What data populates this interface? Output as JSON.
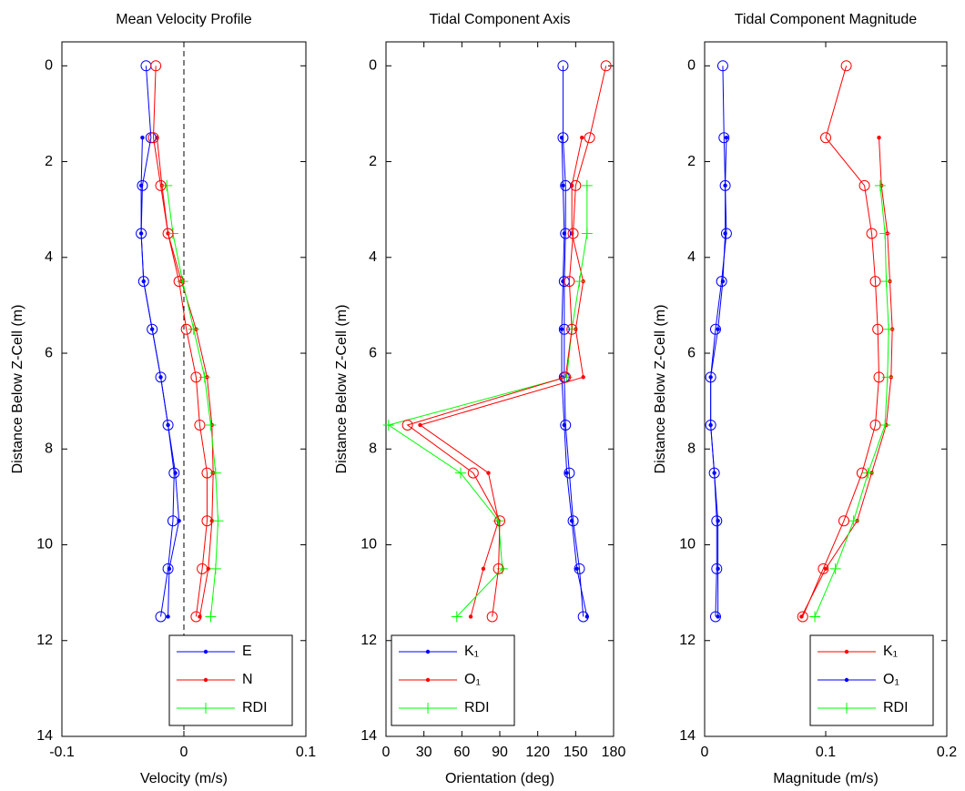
{
  "chart_data": [
    {
      "type": "line",
      "title": "Mean Velocity Profile",
      "xlabel": "Velocity (m/s)",
      "ylabel": "Distance Below Z-Cell (m)",
      "y": [
        0,
        1.5,
        2.5,
        3.5,
        4.5,
        5.5,
        6.5,
        7.5,
        8.5,
        9.5,
        10.5,
        11.5
      ],
      "xlim": [
        -0.1,
        0.1
      ],
      "xticks": [
        -0.1,
        0,
        0.1
      ],
      "ylim": [
        -0.5,
        14
      ],
      "yticks": [
        0,
        2,
        4,
        6,
        8,
        10,
        12,
        14
      ],
      "y_reversed": true,
      "legend": "southeast",
      "reference_line": {
        "x": 0,
        "color": "#000000",
        "style": "dashed"
      },
      "series": [
        {
          "name": "E",
          "color": "#0000ff",
          "marker": ".",
          "values": [
            null,
            -0.034,
            -0.035,
            -0.035,
            -0.033,
            -0.026,
            -0.019,
            -0.013,
            -0.007,
            -0.004,
            -0.012,
            -0.013
          ]
        },
        {
          "name": "N",
          "color": "#ff0000",
          "marker": ".",
          "values": [
            null,
            -0.022,
            -0.018,
            -0.013,
            -0.002,
            0.01,
            0.019,
            0.023,
            0.024,
            0.023,
            0.02,
            0.013
          ]
        },
        {
          "name": "RDI",
          "color": "#00ff00",
          "marker": "+",
          "values": [
            null,
            null,
            -0.014,
            -0.009,
            -0.001,
            0.008,
            0.017,
            0.022,
            0.026,
            0.028,
            0.026,
            0.022
          ]
        },
        {
          "color": "#0000ff",
          "marker": "o",
          "values": [
            -0.031,
            -0.027,
            -0.034,
            -0.035,
            -0.033,
            -0.026,
            -0.019,
            -0.013,
            -0.008,
            -0.009,
            -0.013,
            -0.019
          ]
        },
        {
          "color": "#ff0000",
          "marker": "o",
          "values": [
            -0.023,
            -0.025,
            -0.019,
            -0.013,
            -0.004,
            0.002,
            0.01,
            0.013,
            0.019,
            0.019,
            0.015,
            0.01
          ]
        }
      ]
    },
    {
      "type": "line",
      "title": "Tidal Component Axis",
      "xlabel": "Orientation (deg)",
      "ylabel": "Distance Below Z-Cell (m)",
      "y": [
        0,
        1.5,
        2.5,
        3.5,
        4.5,
        5.5,
        6.5,
        7.5,
        8.5,
        9.5,
        10.5,
        11.5
      ],
      "xlim": [
        0,
        180
      ],
      "xticks": [
        0,
        30,
        60,
        90,
        120,
        150,
        180
      ],
      "ylim": [
        -0.5,
        14
      ],
      "yticks": [
        0,
        2,
        4,
        6,
        8,
        10,
        12,
        14
      ],
      "y_reversed": true,
      "legend": "southwest",
      "series": [
        {
          "name": "K₁",
          "color": "#0000ff",
          "marker": ".",
          "values": [
            null,
            139,
            140,
            141,
            140,
            139,
            139,
            141,
            143,
            147,
            151,
            159
          ]
        },
        {
          "name": "O₁",
          "color": "#ff0000",
          "marker": ".",
          "values": [
            null,
            155,
            147,
            147,
            156,
            150,
            156,
            27,
            81,
            89,
            77,
            67
          ]
        },
        {
          "name": "RDI",
          "color": "#00ff00",
          "marker": "+",
          "values": [
            null,
            null,
            159,
            159,
            153,
            147,
            143,
            2,
            59,
            89,
            92,
            56
          ]
        },
        {
          "color": "#0000ff",
          "marker": "o",
          "values": [
            140,
            140,
            142,
            142,
            141,
            141,
            141,
            142,
            145,
            148,
            153,
            156
          ]
        },
        {
          "color": "#ff0000",
          "marker": "o",
          "values": [
            174,
            161,
            150,
            148,
            145,
            147,
            142,
            17,
            69,
            90,
            89,
            84
          ]
        }
      ]
    },
    {
      "type": "line",
      "title": "Tidal Component Magnitude",
      "xlabel": "Magnitude (m/s)",
      "ylabel": "Distance Below Z-Cell (m)",
      "y": [
        0,
        1.5,
        2.5,
        3.5,
        4.5,
        5.5,
        6.5,
        7.5,
        8.5,
        9.5,
        10.5,
        11.5
      ],
      "xlim": [
        0,
        0.2
      ],
      "xticks": [
        0,
        0.1,
        0.2
      ],
      "ylim": [
        -0.5,
        14
      ],
      "yticks": [
        0,
        2,
        4,
        6,
        8,
        10,
        12,
        14
      ],
      "y_reversed": true,
      "legend": "southeast",
      "series": [
        {
          "name": "K₁",
          "color": "#ff0000",
          "marker": ".",
          "values": [
            null,
            0.144,
            0.146,
            0.151,
            0.153,
            0.155,
            0.154,
            0.15,
            0.138,
            0.126,
            0.1,
            0.08
          ]
        },
        {
          "name": "O₁",
          "color": "#0000ff",
          "marker": ".",
          "values": [
            null,
            0.018,
            0.017,
            0.017,
            0.015,
            0.011,
            0.005,
            0.005,
            0.008,
            0.011,
            0.011,
            0.011
          ]
        },
        {
          "name": "RDI",
          "color": "#00ff00",
          "marker": "+",
          "values": [
            null,
            null,
            0.145,
            0.149,
            0.15,
            0.152,
            0.151,
            0.149,
            0.135,
            0.123,
            0.108,
            0.091
          ]
        },
        {
          "color": "#0000ff",
          "marker": "o",
          "values": [
            0.015,
            0.016,
            0.017,
            0.018,
            0.014,
            0.009,
            0.005,
            0.005,
            0.008,
            0.01,
            0.01,
            0.009
          ]
        },
        {
          "color": "#ff0000",
          "marker": "o",
          "values": [
            0.117,
            0.1,
            0.132,
            0.138,
            0.141,
            0.143,
            0.144,
            0.141,
            0.13,
            0.115,
            0.098,
            0.081
          ]
        }
      ]
    }
  ]
}
